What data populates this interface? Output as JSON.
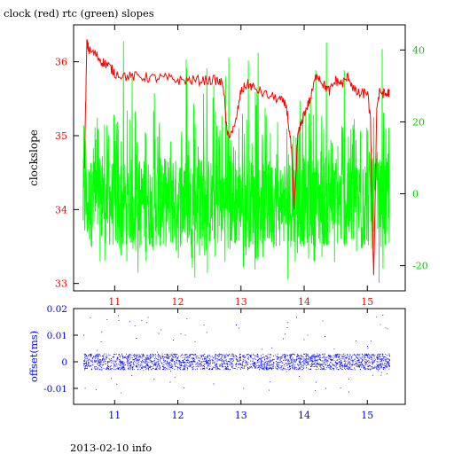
{
  "title": "clock (red) rtc (green) slopes",
  "footer": "2013-02-10 info",
  "chart_data": [
    {
      "type": "line",
      "ylabel": "clockslope",
      "xlim": [
        10.35,
        15.6
      ],
      "ylim": [
        32.9,
        36.5
      ],
      "y2lim": [
        -27,
        47
      ],
      "xticks": [
        "11",
        "12",
        "13",
        "14",
        "15"
      ],
      "yticks": [
        "33",
        "34",
        "35",
        "36"
      ],
      "y2ticks": [
        "-20",
        "0",
        "20",
        "40"
      ],
      "grid": false,
      "series": [
        {
          "name": "clock",
          "color": "#ff0000",
          "axis": "left",
          "x": [
            10.52,
            10.56,
            10.6,
            10.7,
            10.8,
            10.9,
            11.0,
            11.2,
            11.4,
            11.6,
            11.8,
            12.0,
            12.2,
            12.4,
            12.6,
            12.72,
            12.78,
            12.9,
            13.0,
            13.1,
            13.2,
            13.4,
            13.6,
            13.72,
            13.8,
            13.84,
            13.9,
            14.0,
            14.1,
            14.2,
            14.3,
            14.4,
            14.5,
            14.6,
            14.7,
            14.8,
            14.9,
            15.0,
            15.05,
            15.1,
            15.15,
            15.2,
            15.3,
            15.35
          ],
          "y": [
            34.5,
            36.25,
            36.15,
            36.1,
            36.0,
            35.95,
            35.85,
            35.8,
            35.8,
            35.78,
            35.78,
            35.75,
            35.75,
            35.75,
            35.75,
            35.7,
            35.0,
            35.1,
            35.6,
            35.7,
            35.65,
            35.55,
            35.5,
            35.4,
            34.8,
            34.0,
            35.0,
            35.3,
            35.5,
            35.85,
            35.7,
            35.6,
            35.75,
            35.7,
            35.8,
            35.6,
            35.55,
            35.6,
            35.2,
            33.05,
            35.4,
            35.6,
            35.55,
            35.6
          ]
        },
        {
          "name": "rtc",
          "color": "#00ff00",
          "axis": "right",
          "x_range": [
            10.5,
            15.35
          ],
          "center": -5,
          "band": [
            -15,
            10
          ],
          "spike_range": [
            -25,
            43
          ]
        }
      ]
    },
    {
      "type": "scatter",
      "ylabel": "offset(ms)",
      "xlim": [
        10.35,
        15.6
      ],
      "ylim": [
        -0.016,
        0.02
      ],
      "xticks": [
        "11",
        "12",
        "13",
        "14",
        "15"
      ],
      "yticks": [
        "-0.01",
        "0",
        "0.01",
        "0.02"
      ],
      "color": "#0000ff",
      "x_range": [
        10.5,
        15.35
      ],
      "center": 0.0,
      "band": [
        -0.003,
        0.003
      ],
      "spike_range": [
        -0.012,
        0.018
      ]
    }
  ]
}
